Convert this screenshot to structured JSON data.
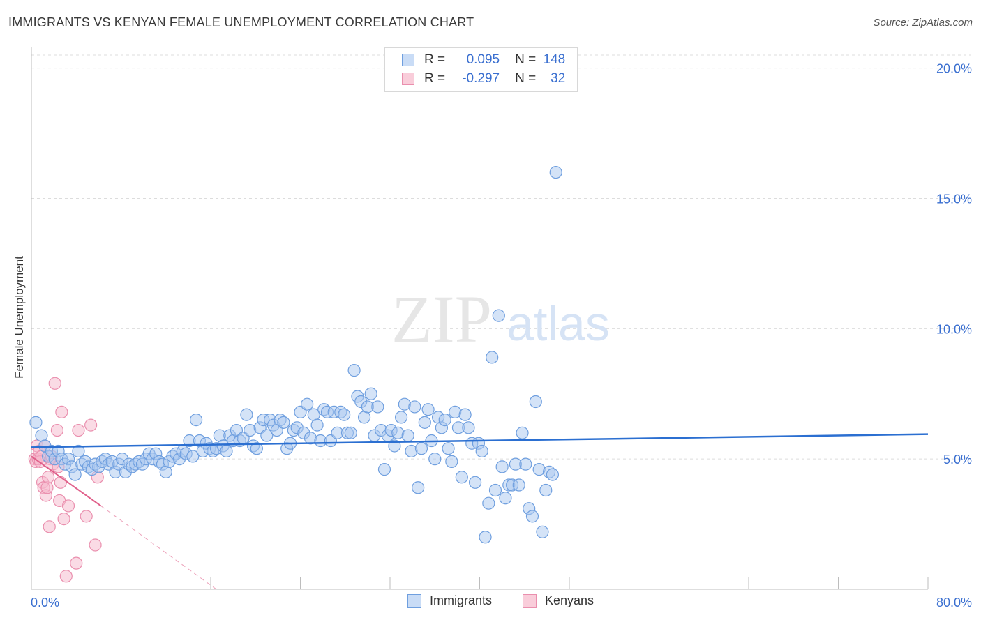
{
  "title": "IMMIGRANTS VS KENYAN FEMALE UNEMPLOYMENT CORRELATION CHART",
  "source": "Source: ZipAtlas.com",
  "watermark": {
    "zip": "ZIP",
    "atlas": "atlas"
  },
  "legend_top": {
    "rows": [
      {
        "r_label": "R =",
        "r_value": "0.095",
        "n_label": "N =",
        "n_value": "148"
      },
      {
        "r_label": "R =",
        "r_value": "-0.297",
        "n_label": "N =",
        "n_value": "32"
      }
    ]
  },
  "colors": {
    "immigrants_fill": "#a9c7f0",
    "immigrants_stroke": "#6f9fdf",
    "immigrants_line": "#2b6fd1",
    "kenyans_fill": "#f6b8cb",
    "kenyans_stroke": "#ea8fae",
    "kenyans_line": "#e0608a",
    "tick_label": "#3a6fd0",
    "grid": "#dcdcdc"
  },
  "chart_data": {
    "type": "scatter",
    "title": "IMMIGRANTS VS KENYAN FEMALE UNEMPLOYMENT CORRELATION CHART",
    "xlabel": "",
    "ylabel": "Female Unemployment",
    "xlim": [
      0,
      80
    ],
    "ylim": [
      0,
      20.5
    ],
    "x_tick_labels": [
      "0.0%",
      "80.0%"
    ],
    "y_ticks": [
      5,
      10,
      15,
      20
    ],
    "y_tick_labels": [
      "5.0%",
      "10.0%",
      "15.0%",
      "20.0%"
    ],
    "grid": "horizontal dashed",
    "legend_placement": "bottom",
    "series": [
      {
        "name": "Immigrants",
        "r": 0.095,
        "n": 148,
        "trend": {
          "x": [
            0,
            80
          ],
          "y": [
            5.45,
            5.95
          ]
        },
        "points": [
          [
            0.4,
            6.4
          ],
          [
            0.9,
            5.9
          ],
          [
            1.2,
            5.5
          ],
          [
            1.5,
            5.1
          ],
          [
            1.8,
            5.3
          ],
          [
            2.1,
            5.0
          ],
          [
            2.4,
            5.3
          ],
          [
            2.7,
            5.0
          ],
          [
            3.0,
            4.8
          ],
          [
            3.3,
            5.0
          ],
          [
            3.6,
            4.7
          ],
          [
            3.9,
            4.4
          ],
          [
            4.2,
            5.3
          ],
          [
            4.5,
            4.8
          ],
          [
            4.8,
            4.9
          ],
          [
            5.1,
            4.7
          ],
          [
            5.4,
            4.6
          ],
          [
            5.7,
            4.8
          ],
          [
            6.0,
            4.7
          ],
          [
            6.3,
            4.9
          ],
          [
            6.6,
            5.0
          ],
          [
            6.9,
            4.8
          ],
          [
            7.2,
            4.9
          ],
          [
            7.5,
            4.5
          ],
          [
            7.8,
            4.8
          ],
          [
            8.1,
            5.0
          ],
          [
            8.4,
            4.5
          ],
          [
            8.7,
            4.8
          ],
          [
            9.0,
            4.7
          ],
          [
            9.3,
            4.8
          ],
          [
            9.6,
            4.9
          ],
          [
            9.9,
            4.8
          ],
          [
            10.2,
            5.0
          ],
          [
            10.5,
            5.2
          ],
          [
            10.8,
            5.0
          ],
          [
            11.1,
            5.2
          ],
          [
            11.4,
            4.9
          ],
          [
            11.7,
            4.8
          ],
          [
            12.0,
            4.5
          ],
          [
            12.3,
            4.9
          ],
          [
            12.6,
            5.1
          ],
          [
            12.9,
            5.2
          ],
          [
            13.2,
            5.0
          ],
          [
            13.5,
            5.3
          ],
          [
            13.8,
            5.2
          ],
          [
            14.1,
            5.7
          ],
          [
            14.4,
            5.1
          ],
          [
            14.7,
            6.5
          ],
          [
            15.0,
            5.7
          ],
          [
            15.3,
            5.3
          ],
          [
            15.6,
            5.6
          ],
          [
            15.9,
            5.4
          ],
          [
            16.2,
            5.3
          ],
          [
            16.5,
            5.4
          ],
          [
            16.8,
            5.9
          ],
          [
            17.1,
            5.5
          ],
          [
            17.4,
            5.3
          ],
          [
            17.7,
            5.9
          ],
          [
            18.0,
            5.7
          ],
          [
            18.3,
            6.1
          ],
          [
            18.6,
            5.7
          ],
          [
            18.9,
            5.8
          ],
          [
            19.2,
            6.7
          ],
          [
            19.5,
            6.1
          ],
          [
            19.8,
            5.5
          ],
          [
            20.1,
            5.4
          ],
          [
            20.4,
            6.2
          ],
          [
            20.7,
            6.5
          ],
          [
            21.0,
            5.9
          ],
          [
            21.3,
            6.5
          ],
          [
            21.6,
            6.3
          ],
          [
            21.9,
            6.1
          ],
          [
            22.2,
            6.5
          ],
          [
            22.5,
            6.4
          ],
          [
            22.8,
            5.4
          ],
          [
            23.1,
            5.6
          ],
          [
            23.4,
            6.1
          ],
          [
            23.7,
            6.2
          ],
          [
            24.0,
            6.8
          ],
          [
            24.3,
            6.0
          ],
          [
            24.6,
            7.1
          ],
          [
            24.9,
            5.8
          ],
          [
            25.2,
            6.7
          ],
          [
            25.5,
            6.3
          ],
          [
            25.8,
            5.7
          ],
          [
            26.1,
            6.9
          ],
          [
            26.4,
            6.8
          ],
          [
            26.7,
            5.7
          ],
          [
            27.0,
            6.8
          ],
          [
            27.3,
            6.0
          ],
          [
            27.6,
            6.8
          ],
          [
            27.9,
            6.7
          ],
          [
            28.2,
            6.0
          ],
          [
            28.5,
            6.0
          ],
          [
            28.8,
            8.4
          ],
          [
            29.1,
            7.4
          ],
          [
            29.4,
            7.2
          ],
          [
            29.7,
            6.6
          ],
          [
            30.0,
            7.0
          ],
          [
            30.3,
            7.5
          ],
          [
            30.6,
            5.9
          ],
          [
            30.9,
            7.0
          ],
          [
            31.2,
            6.1
          ],
          [
            31.5,
            4.6
          ],
          [
            31.8,
            5.9
          ],
          [
            32.1,
            6.1
          ],
          [
            32.4,
            5.5
          ],
          [
            32.7,
            6.0
          ],
          [
            33.0,
            6.6
          ],
          [
            33.3,
            7.1
          ],
          [
            33.6,
            5.9
          ],
          [
            33.9,
            5.3
          ],
          [
            34.2,
            7.0
          ],
          [
            34.5,
            3.9
          ],
          [
            34.8,
            5.4
          ],
          [
            35.1,
            6.4
          ],
          [
            35.4,
            6.9
          ],
          [
            35.7,
            5.7
          ],
          [
            36.0,
            5.0
          ],
          [
            36.3,
            6.6
          ],
          [
            36.6,
            6.2
          ],
          [
            36.9,
            6.5
          ],
          [
            37.2,
            5.4
          ],
          [
            37.5,
            4.9
          ],
          [
            37.8,
            6.8
          ],
          [
            38.1,
            6.2
          ],
          [
            38.4,
            4.3
          ],
          [
            38.7,
            6.7
          ],
          [
            39.0,
            6.2
          ],
          [
            39.3,
            5.6
          ],
          [
            39.6,
            4.1
          ],
          [
            39.9,
            5.6
          ],
          [
            40.2,
            5.3
          ],
          [
            40.5,
            2.0
          ],
          [
            40.8,
            3.3
          ],
          [
            41.1,
            8.9
          ],
          [
            41.4,
            3.8
          ],
          [
            41.7,
            10.5
          ],
          [
            42.0,
            4.7
          ],
          [
            42.3,
            3.5
          ],
          [
            42.6,
            4.0
          ],
          [
            42.9,
            4.0
          ],
          [
            43.2,
            4.8
          ],
          [
            43.5,
            4.0
          ],
          [
            43.8,
            6.0
          ],
          [
            44.1,
            4.8
          ],
          [
            44.4,
            3.1
          ],
          [
            44.7,
            2.8
          ],
          [
            45.0,
            7.2
          ],
          [
            45.3,
            4.6
          ],
          [
            45.6,
            2.2
          ],
          [
            45.9,
            3.8
          ],
          [
            46.2,
            4.5
          ],
          [
            46.5,
            4.4
          ],
          [
            46.8,
            16.0
          ]
        ]
      },
      {
        "name": "Kenyans",
        "r": -0.297,
        "n": 32,
        "trend": {
          "x": [
            0,
            6.2
          ],
          "y": [
            5.1,
            3.2
          ]
        },
        "trend_dashed": {
          "x": [
            6.2,
            16.5
          ],
          "y": [
            3.2,
            0.0
          ]
        },
        "points": [
          [
            0.3,
            5.0
          ],
          [
            0.4,
            4.9
          ],
          [
            0.5,
            5.5
          ],
          [
            0.6,
            5.0
          ],
          [
            0.7,
            5.3
          ],
          [
            0.8,
            4.9
          ],
          [
            0.9,
            5.1
          ],
          [
            1.0,
            4.1
          ],
          [
            1.1,
            3.9
          ],
          [
            1.2,
            5.5
          ],
          [
            1.3,
            3.6
          ],
          [
            1.4,
            3.9
          ],
          [
            1.5,
            4.3
          ],
          [
            1.6,
            2.4
          ],
          [
            1.7,
            5.0
          ],
          [
            1.8,
            5.1
          ],
          [
            1.9,
            4.8
          ],
          [
            2.1,
            7.9
          ],
          [
            2.3,
            6.1
          ],
          [
            2.4,
            4.7
          ],
          [
            2.5,
            3.4
          ],
          [
            2.6,
            4.1
          ],
          [
            2.7,
            6.8
          ],
          [
            2.9,
            2.7
          ],
          [
            3.1,
            0.5
          ],
          [
            3.3,
            3.2
          ],
          [
            4.2,
            6.1
          ],
          [
            4.0,
            1.0
          ],
          [
            4.9,
            2.8
          ],
          [
            5.3,
            6.3
          ],
          [
            5.7,
            1.7
          ],
          [
            5.9,
            4.3
          ]
        ]
      }
    ]
  },
  "legend_bottom": [
    "Immigrants",
    "Kenyans"
  ]
}
